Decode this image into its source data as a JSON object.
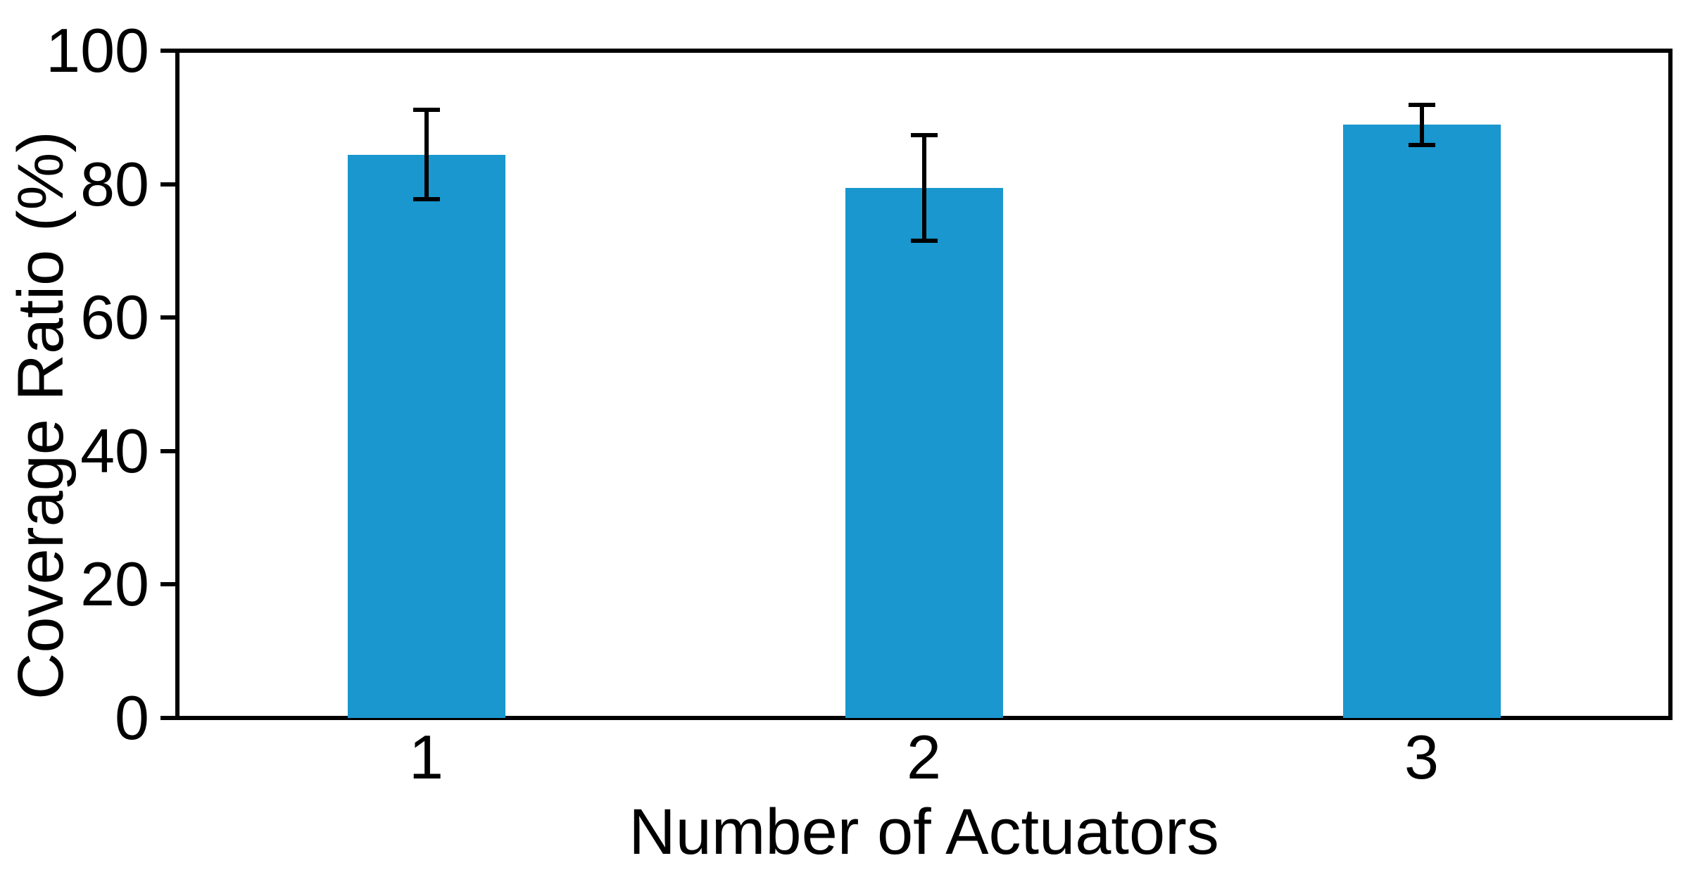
{
  "chart_data": {
    "type": "bar",
    "title": "",
    "xlabel": "Number of Actuators",
    "ylabel": "Coverage Ratio (%)",
    "categories": [
      "1",
      "2",
      "3"
    ],
    "values": [
      84.4,
      79.4,
      88.9
    ],
    "errors": [
      6.7,
      7.9,
      3.0
    ],
    "ylim": [
      0,
      100
    ],
    "yticks": [
      0,
      20,
      40,
      60,
      80,
      100
    ],
    "grid": "off",
    "legend": "none",
    "bar_color": "#1997ce",
    "axis_color": "#000000",
    "background_color": "#ffffff"
  }
}
